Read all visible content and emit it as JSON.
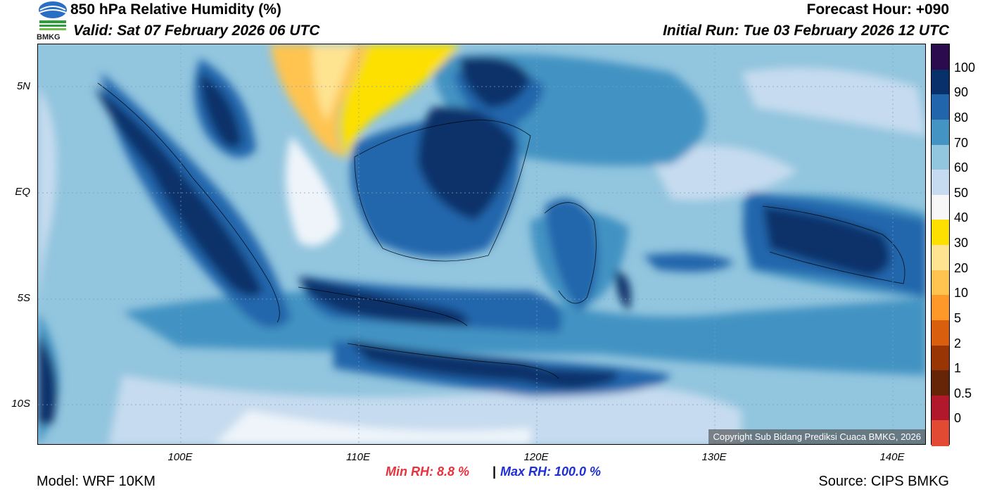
{
  "header": {
    "title": "850 hPa Relative Humidity (%)",
    "valid": "Valid: Sat 07 February 2026 06 UTC",
    "forecast_hour": "Forecast Hour: +090",
    "initial_run": "Initial Run: Tue 03 February 2026 12 UTC",
    "logo_text": "BMKG"
  },
  "axes": {
    "y_labels": [
      "5N",
      "EQ",
      "5S",
      "10S"
    ],
    "x_labels": [
      "100E",
      "110E",
      "120E",
      "130E",
      "140E"
    ]
  },
  "colorbar": {
    "labels": [
      "100",
      "90",
      "80",
      "70",
      "60",
      "50",
      "40",
      "30",
      "20",
      "10",
      "5",
      "2",
      "1",
      "0.5",
      "0"
    ],
    "colors": [
      "#2c0a4e",
      "#08306b",
      "#2166ac",
      "#4393c3",
      "#92c5de",
      "#c6dbef",
      "#f7f7f7",
      "#fde000",
      "#fee391",
      "#fec44f",
      "#fe9929",
      "#d95f0e",
      "#993404",
      "#662506",
      "#b2182b",
      "#e34a33"
    ]
  },
  "footer": {
    "min_rh": "Min RH:   8.8 %",
    "separator": "|",
    "max_rh": "Max RH: 100.0 %",
    "model": "Model: WRF 10KM",
    "source": "Source: CIPS BMKG",
    "copyright": "Copyright Sub Bidang Prediksi Cuaca BMKG, 2026"
  },
  "colors": {
    "base_sea": "#92c5de",
    "dry_core": "#fde000",
    "very_humid": "#08306b"
  }
}
